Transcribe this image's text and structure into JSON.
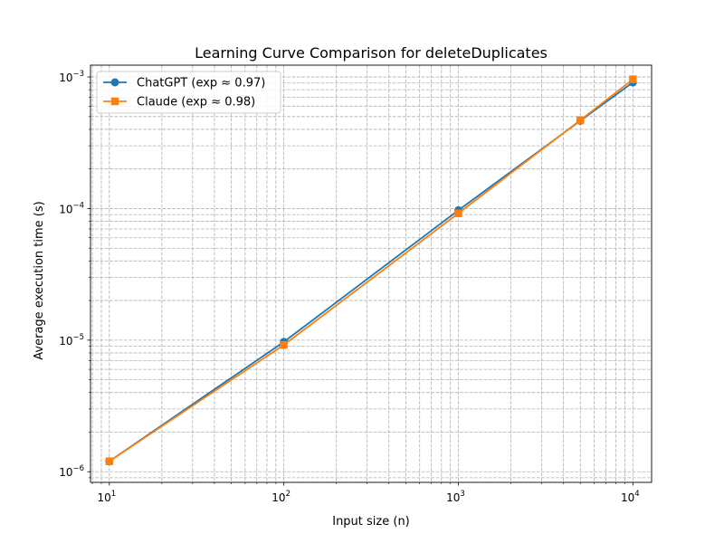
{
  "chart_data": {
    "type": "line",
    "title": "Learning Curve Comparison for deleteDuplicates",
    "xlabel": "Input size (n)",
    "ylabel": "Average execution time (s)",
    "x_scale": "log",
    "y_scale": "log",
    "xlim": [
      7.8,
      12800
    ],
    "ylim": [
      8.3e-07,
      0.00123
    ],
    "grid": true,
    "grid_style": "dashed",
    "legend_position": "top-left",
    "x_ticks": [
      {
        "value": 10,
        "base": "10",
        "exp": "1"
      },
      {
        "value": 100,
        "base": "10",
        "exp": "2"
      },
      {
        "value": 1000,
        "base": "10",
        "exp": "3"
      },
      {
        "value": 10000,
        "base": "10",
        "exp": "4"
      }
    ],
    "y_ticks": [
      {
        "value": 1e-06,
        "base": "10",
        "exp": "−6"
      },
      {
        "value": 1e-05,
        "base": "10",
        "exp": "−5"
      },
      {
        "value": 0.0001,
        "base": "10",
        "exp": "−4"
      },
      {
        "value": 0.001,
        "base": "10",
        "exp": "−3"
      }
    ],
    "x": [
      10,
      100,
      1000,
      5000,
      10000
    ],
    "series": [
      {
        "name": "ChatGPT (exp ≈ 0.97)",
        "color": "#1f77b4",
        "marker": "circle",
        "values": [
          1.2e-06,
          9.7e-06,
          9.7e-05,
          0.000465,
          0.00091
        ]
      },
      {
        "name": "Claude (exp ≈ 0.98)",
        "color": "#ff7f0e",
        "marker": "square",
        "values": [
          1.2e-06,
          9.2e-06,
          9.2e-05,
          0.00047,
          0.00096
        ]
      }
    ]
  }
}
